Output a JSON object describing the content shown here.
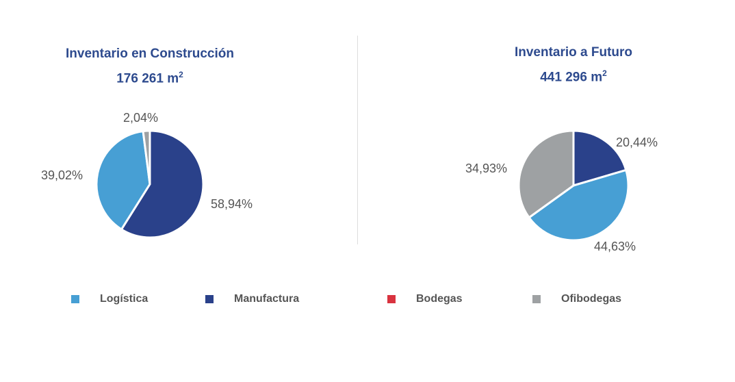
{
  "chart_data": [
    {
      "type": "pie",
      "title": "Inventario en Construcción",
      "total": "176 261",
      "unit": "m",
      "unit_exp": "2",
      "slices": [
        {
          "name": "Manufactura",
          "value": 58.94,
          "label": "58,94%"
        },
        {
          "name": "Logística",
          "value": 39.02,
          "label": "39,02%"
        },
        {
          "name": "Ofibodegas",
          "value": 2.04,
          "label": "2,04%"
        }
      ]
    },
    {
      "type": "pie",
      "title": "Inventario a Futuro",
      "total": "441 296",
      "unit": "m",
      "unit_exp": "2",
      "slices": [
        {
          "name": "Manufactura",
          "value": 20.44,
          "label": "20,44%"
        },
        {
          "name": "Logística",
          "value": 44.63,
          "label": "44,63%"
        },
        {
          "name": "Ofibodegas",
          "value": 34.93,
          "label": "34,93%"
        }
      ]
    }
  ],
  "legend": [
    {
      "name": "Logística",
      "color": "#479fd4"
    },
    {
      "name": "Manufactura",
      "color": "#2a418a"
    },
    {
      "name": "Bodegas",
      "color": "#d9333f"
    },
    {
      "name": "Ofibodegas",
      "color": "#9ea1a3"
    }
  ]
}
